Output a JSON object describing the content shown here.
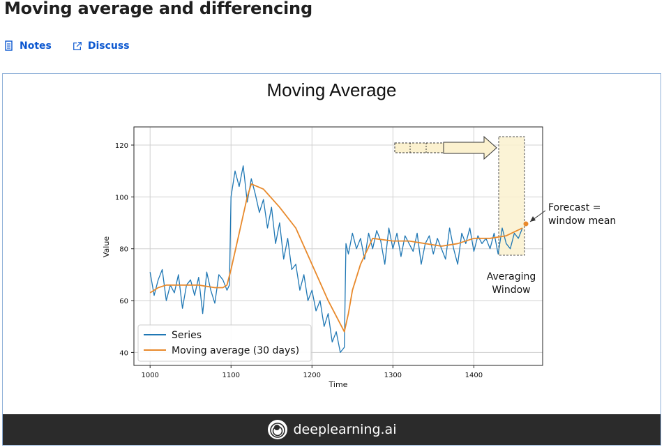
{
  "header": {
    "title": "Moving average and differencing"
  },
  "links": {
    "notes": "Notes",
    "discuss": "Discuss"
  },
  "slide": {
    "title": "Moving Average"
  },
  "chart_data": {
    "type": "line",
    "xlabel": "Time",
    "ylabel": "Value",
    "xlim": [
      980,
      1485
    ],
    "ylim": [
      35,
      127
    ],
    "xticks": [
      "1000",
      "1100",
      "1200",
      "1300",
      "1400"
    ],
    "yticks": [
      "40",
      "60",
      "80",
      "100",
      "120"
    ],
    "grid": true,
    "legend": "lower-left",
    "series": [
      {
        "name": "Series",
        "color": "#1f77b4",
        "x": [
          1000,
          1005,
          1010,
          1015,
          1020,
          1025,
          1030,
          1035,
          1040,
          1045,
          1050,
          1055,
          1060,
          1065,
          1070,
          1075,
          1080,
          1085,
          1090,
          1095,
          1098,
          1100,
          1105,
          1110,
          1115,
          1120,
          1125,
          1130,
          1135,
          1140,
          1145,
          1150,
          1155,
          1160,
          1165,
          1170,
          1175,
          1180,
          1185,
          1190,
          1195,
          1200,
          1205,
          1210,
          1215,
          1220,
          1225,
          1230,
          1235,
          1240,
          1242,
          1245,
          1250,
          1255,
          1260,
          1265,
          1270,
          1275,
          1280,
          1285,
          1290,
          1295,
          1300,
          1305,
          1310,
          1315,
          1320,
          1325,
          1330,
          1335,
          1340,
          1345,
          1350,
          1355,
          1360,
          1365,
          1370,
          1375,
          1380,
          1385,
          1390,
          1395,
          1400,
          1405,
          1410,
          1415,
          1420,
          1425,
          1430,
          1435,
          1440,
          1445,
          1450,
          1455,
          1460
        ],
        "y": [
          71,
          62,
          68,
          72,
          60,
          66,
          63,
          70,
          57,
          66,
          68,
          62,
          69,
          55,
          71,
          64,
          59,
          70,
          68,
          64,
          66,
          100,
          110,
          104,
          112,
          98,
          107,
          101,
          94,
          99,
          88,
          96,
          82,
          90,
          76,
          84,
          72,
          74,
          64,
          70,
          60,
          64,
          56,
          60,
          50,
          55,
          44,
          48,
          40,
          42,
          82,
          78,
          86,
          80,
          84,
          76,
          86,
          80,
          87,
          83,
          74,
          88,
          80,
          86,
          77,
          85,
          82,
          79,
          86,
          74,
          82,
          85,
          78,
          84,
          80,
          76,
          88,
          80,
          74,
          86,
          82,
          88,
          79,
          85,
          82,
          84,
          80,
          86,
          78,
          88,
          82,
          80,
          86,
          84,
          88
        ]
      },
      {
        "name": "Moving average (30 days)",
        "color": "#e8892b",
        "x": [
          1000,
          1010,
          1020,
          1040,
          1060,
          1080,
          1090,
          1095,
          1100,
          1110,
          1120,
          1125,
          1140,
          1160,
          1180,
          1200,
          1220,
          1240,
          1245,
          1250,
          1260,
          1275,
          1300,
          1320,
          1340,
          1360,
          1380,
          1400,
          1420,
          1440,
          1460
        ],
        "y": [
          63,
          65,
          66,
          66,
          66,
          65,
          65,
          66,
          72,
          86,
          100,
          105,
          103,
          96,
          88,
          74,
          60,
          48,
          55,
          64,
          74,
          84,
          83,
          83,
          82,
          81,
          82,
          84,
          84,
          85,
          88
        ]
      }
    ],
    "annotations": [
      "Forecast =",
      "window mean",
      "Averaging",
      "Window"
    ]
  },
  "footer": {
    "brand": "deeplearning.ai"
  }
}
